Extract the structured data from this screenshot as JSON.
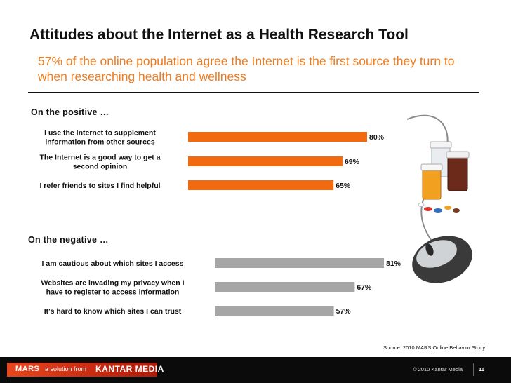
{
  "title": "Attitudes about the Internet as a Health Research Tool",
  "subtitle": "57% of the online population agree the Internet is the first source they turn to when researching health and wellness",
  "source": "Source: 2010 MARS Online Behavior Study",
  "footer": {
    "brand_mars": "MARS",
    "brand_tagline": "a solution from",
    "brand_kantar": "KANTAR MEDIA",
    "copyright": "© 2010 Kantar Media",
    "page_number": "11"
  },
  "colors": {
    "positive": "#f26a0f",
    "negative": "#a6a6a6",
    "subtitle": "#f07b1c"
  },
  "chart_data": [
    {
      "type": "bar",
      "orientation": "horizontal",
      "section_label": "On the positive …",
      "categories": [
        "I use the Internet to supplement information from other sources",
        "The Internet is a good way to get a second opinion",
        "I refer friends to sites I find helpful"
      ],
      "values": [
        80,
        69,
        65
      ],
      "data_labels": [
        "80%",
        "69%",
        "65%"
      ],
      "unit": "%",
      "color": "#f26a0f"
    },
    {
      "type": "bar",
      "orientation": "horizontal",
      "section_label": "On the negative …",
      "categories": [
        "I am cautious about which sites I access",
        "Websites are invading my privacy when I have to register to access information",
        "It's hard to know which sites I can trust"
      ],
      "values": [
        81,
        67,
        57
      ],
      "data_labels": [
        "81%",
        "67%",
        "57%"
      ],
      "unit": "%",
      "color": "#a6a6a6"
    }
  ],
  "illustration": {
    "icon": "computer-mouse-with-pill-bottles-icon"
  }
}
